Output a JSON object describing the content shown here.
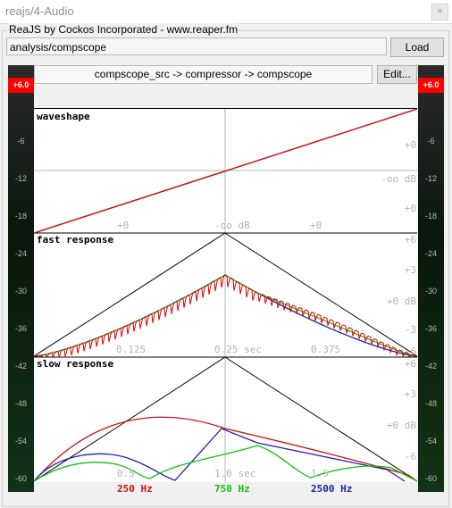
{
  "window": {
    "title": "reajs/4-Audio",
    "close_label": "×"
  },
  "group_label": "ReaJS by Cockos Incorporated - www.reaper.fm",
  "effect_path": "analysis/compscope",
  "load_label": "Load",
  "chain_label": "compscope_src -> compressor -> compscope",
  "edit_label": "Edit...",
  "meter": {
    "peak_label": "+6.0",
    "ticks": [
      "-6",
      "-12",
      "-18",
      "-24",
      "-30",
      "-36",
      "-42",
      "-48",
      "-54",
      "-60"
    ]
  },
  "panels": [
    {
      "title": "waveshape",
      "x_labels": [
        "+0",
        "-oo dB",
        "+0"
      ],
      "y_labels": [
        "+0",
        "-oo dB",
        "+0"
      ]
    },
    {
      "title": "fast response",
      "x_labels": [
        "0.125",
        "0.25 sec",
        "0.375"
      ],
      "y_labels": [
        "+6",
        "+3",
        "+0 dB",
        "-3",
        "-6"
      ]
    },
    {
      "title": "slow response",
      "x_labels": [
        "0.5",
        "1.0 sec",
        "1.5"
      ],
      "y_labels": [
        "+6",
        "+3",
        "+0 dB",
        "-6"
      ]
    }
  ],
  "legend": [
    {
      "label": "250 Hz",
      "color": "#c81414"
    },
    {
      "label": "750 Hz",
      "color": "#10c010"
    },
    {
      "label": "2500 Hz",
      "color": "#2020b0"
    }
  ],
  "colors": {
    "triangle": "#000000",
    "grid": "#b4b4b4",
    "label": "#b4b4b4"
  }
}
